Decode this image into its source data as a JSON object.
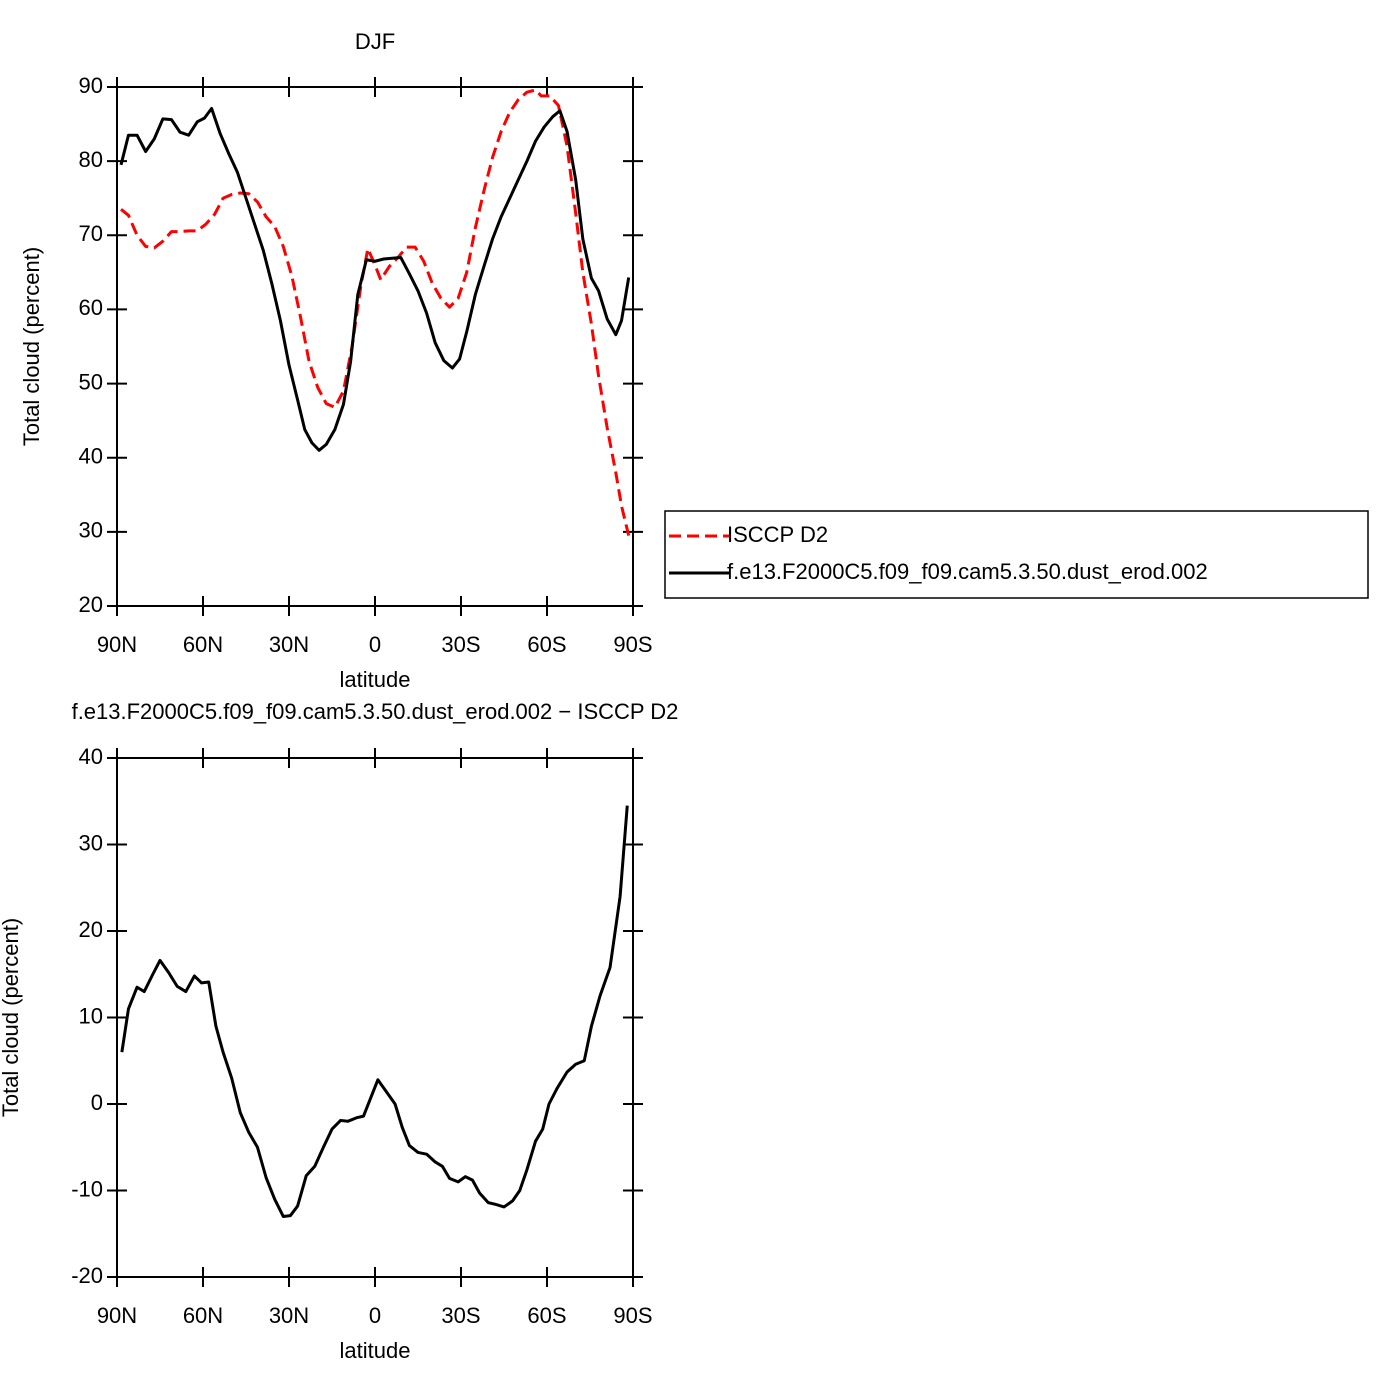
{
  "chart_data": [
    {
      "type": "line",
      "title": "DJF",
      "xlabel": "latitude",
      "ylabel": "Total cloud (percent)",
      "xlim": [
        90,
        -90
      ],
      "xticks": [
        {
          "value": 90,
          "label": "90N"
        },
        {
          "value": 60,
          "label": "60N"
        },
        {
          "value": 30,
          "label": "30N"
        },
        0,
        {
          "value": -30,
          "label": "30S"
        },
        {
          "value": -60,
          "label": "60S"
        },
        {
          "value": -90,
          "label": "90S"
        }
      ],
      "ylim": [
        20,
        90
      ],
      "yticks": [
        20,
        30,
        40,
        50,
        60,
        70,
        80,
        90
      ],
      "legend": "right",
      "series": [
        {
          "name": "ISCCP D2",
          "color": "#ff0000",
          "dash": true,
          "x": [
            88.6,
            86,
            83,
            80,
            77,
            74,
            71,
            68,
            65,
            62,
            59,
            56,
            53,
            50,
            47,
            44,
            41,
            38,
            35,
            32,
            29,
            26,
            23,
            20,
            17,
            14,
            11,
            8,
            5,
            2.5,
            0,
            -2,
            -5,
            -8,
            -11,
            -14,
            -17,
            -20,
            -23,
            -26,
            -29,
            -32,
            -35,
            -38,
            -41,
            -44,
            -47,
            -50,
            -53,
            -56,
            -58,
            -61,
            -64,
            -67,
            -70,
            -72.5,
            -75.5,
            -78,
            -81,
            -84,
            -86,
            -88.5
          ],
          "values": [
            73.5,
            72.7,
            70,
            68.5,
            68.3,
            69.2,
            70.5,
            70.5,
            70.6,
            70.6,
            71.5,
            72.8,
            75,
            75.5,
            75.7,
            75.6,
            74.5,
            72.5,
            71.2,
            68.5,
            64.5,
            59,
            53,
            49.5,
            47.3,
            46.8,
            49,
            55,
            63,
            68.2,
            66,
            64,
            65.8,
            67,
            68.4,
            68.4,
            66.5,
            63.5,
            61.5,
            60.3,
            61.5,
            65,
            71,
            76,
            80.5,
            84,
            86.6,
            88.3,
            89.3,
            89.6,
            88.8,
            88.8,
            87.5,
            82,
            73,
            65,
            58,
            51,
            44,
            38,
            33.5,
            29.5
          ]
        },
        {
          "name": "f.e13.F2000C5.f09_f09.cam5.3.50.dust_erod.002",
          "color": "#000000",
          "dash": false,
          "x": [
            88.6,
            86,
            83,
            80,
            77,
            74,
            71,
            68,
            65,
            62,
            59.5,
            57,
            54,
            51,
            48,
            45,
            42,
            39,
            36,
            33,
            30,
            27,
            24.5,
            22,
            19.5,
            17,
            14,
            11,
            8.5,
            6,
            3,
            0,
            -3,
            -6,
            -9,
            -12,
            -15,
            -18,
            -21,
            -24,
            -27,
            -29.5,
            -32,
            -35,
            -38,
            -41,
            -44,
            -47,
            -50,
            -53,
            -56,
            -59,
            -62,
            -64.5,
            -67,
            -70,
            -72.5,
            -75.5,
            -78,
            -81,
            -84,
            -86,
            -88.5
          ],
          "values": [
            79.5,
            83.5,
            83.5,
            81.3,
            83,
            85.7,
            85.6,
            83.9,
            83.5,
            85.3,
            85.8,
            87.1,
            83.7,
            81,
            78.5,
            75,
            71.5,
            68,
            63.5,
            58.5,
            52.5,
            47.8,
            43.8,
            42,
            41,
            41.8,
            43.8,
            47.2,
            53,
            62,
            66.7,
            66.5,
            66.8,
            66.9,
            67,
            64.8,
            62.5,
            59.5,
            55.5,
            53.1,
            52.1,
            53.3,
            57,
            62,
            65.8,
            69.5,
            72.5,
            75,
            77.5,
            80,
            82.7,
            84.6,
            86,
            86.8,
            84,
            77.5,
            69.5,
            64.2,
            62.5,
            58.7,
            56.6,
            58.5,
            64.3
          ]
        }
      ]
    },
    {
      "type": "line",
      "title": "f.e13.F2000C5.f09_f09.cam5.3.50.dust_erod.002 − ISCCP D2",
      "xlabel": "latitude",
      "ylabel": "Total cloud (percent)",
      "xlim": [
        90,
        -90
      ],
      "xticks": [
        {
          "value": 90,
          "label": "90N"
        },
        {
          "value": 60,
          "label": "60N"
        },
        {
          "value": 30,
          "label": "30N"
        },
        0,
        {
          "value": -30,
          "label": "30S"
        },
        {
          "value": -60,
          "label": "60S"
        },
        {
          "value": -90,
          "label": "90S"
        }
      ],
      "ylim": [
        -20,
        40
      ],
      "yticks": [
        -20,
        -10,
        0,
        10,
        20,
        30,
        40
      ],
      "series": [
        {
          "color": "#000000",
          "dash": false,
          "x": [
            88.3,
            86,
            83,
            80.5,
            77.5,
            75,
            72,
            69,
            66,
            63,
            60.5,
            58,
            55.5,
            53,
            50,
            47,
            44,
            41,
            38,
            35,
            32,
            29.5,
            27,
            24,
            21,
            18,
            15,
            12,
            9.5,
            6.5,
            4,
            1.5,
            -1,
            -4,
            -7,
            -9.5,
            -12,
            -15,
            -18,
            -21,
            -23.5,
            -26,
            -29,
            -31.5,
            -34,
            -36.5,
            -39.5,
            -42,
            -45,
            -48,
            -50.5,
            -53,
            -56,
            -58.5,
            -60.7,
            -63.5,
            -67,
            -70,
            -73,
            -75.5,
            -78.5,
            -82,
            -85.5,
            -88
          ],
          "values": [
            6,
            11,
            13.5,
            13,
            15,
            16.6,
            15.2,
            13.6,
            13,
            14.8,
            14,
            14.1,
            9,
            6,
            3,
            -1,
            -3.3,
            -5,
            -8.5,
            -11,
            -13,
            -12.9,
            -11.8,
            -8.3,
            -7.2,
            -5,
            -2.9,
            -1.9,
            -2,
            -1.6,
            -1.4,
            0.7,
            2.8,
            1.4,
            0,
            -2.7,
            -4.8,
            -5.6,
            -5.8,
            -6.7,
            -7.2,
            -8.6,
            -9,
            -8.4,
            -8.8,
            -10.3,
            -11.4,
            -11.6,
            -11.9,
            -11.2,
            -10,
            -7.6,
            -4.3,
            -2.9,
            0,
            1.8,
            3.7,
            4.6,
            5,
            9,
            12.5,
            15.8,
            24,
            34.5
          ]
        }
      ]
    }
  ]
}
